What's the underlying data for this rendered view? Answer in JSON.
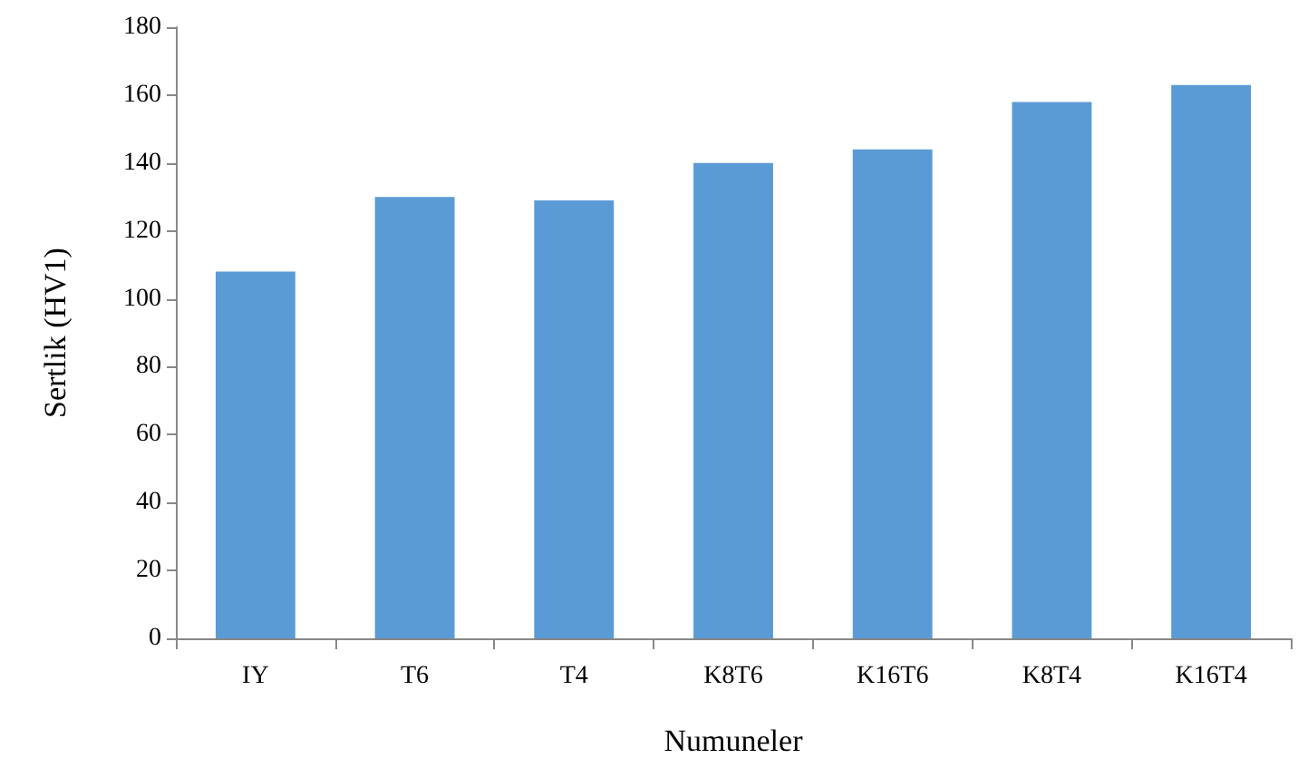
{
  "chart_data": {
    "type": "bar",
    "xlabel": "Numuneler",
    "ylabel": "Sertlik (HV1)",
    "categories": [
      "IY",
      "T6",
      "T4",
      "K8T6",
      "K16T6",
      "K8T4",
      "K16T4"
    ],
    "values": [
      108,
      130,
      129,
      140,
      144,
      158,
      163
    ],
    "color": "#5b9bd5",
    "ylim": [
      0,
      180
    ],
    "yticks": [
      0,
      20,
      40,
      60,
      80,
      100,
      120,
      140,
      160,
      180
    ],
    "grid": false
  }
}
